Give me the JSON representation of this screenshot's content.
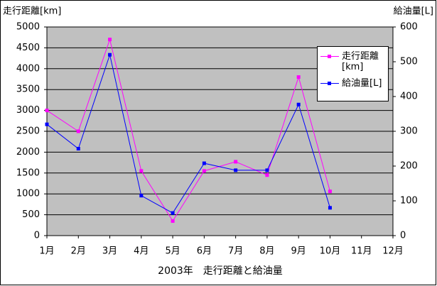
{
  "chart_data": {
    "type": "line",
    "title": "2003年　走行距離と給油量",
    "y_label": "走行距離[km]",
    "y2_label": "給油量[L]",
    "categories": [
      "1月",
      "2月",
      "3月",
      "4月",
      "5月",
      "6月",
      "7月",
      "8月",
      "9月",
      "10月",
      "11月",
      "12月"
    ],
    "series": [
      {
        "name": "走行距離[km]",
        "color": "#ff00ff",
        "values": [
          3000,
          2500,
          4700,
          1550,
          350,
          1550,
          1770,
          1450,
          3800,
          1060,
          null,
          null
        ]
      },
      {
        "name": "給油量[L]",
        "color": "#0000ff",
        "axis": "y2",
        "values": [
          320,
          250,
          520,
          115,
          65,
          208,
          188,
          188,
          377,
          80,
          null,
          null
        ]
      }
    ],
    "ylim": [
      0,
      5000
    ],
    "yticks": [
      0,
      500,
      1000,
      1500,
      2000,
      2500,
      3000,
      3500,
      4000,
      4500,
      5000
    ],
    "y2lim": [
      0,
      600
    ],
    "y2ticks": [
      0,
      100,
      200,
      300,
      400,
      500,
      600
    ],
    "grid": true,
    "legend": "right"
  }
}
